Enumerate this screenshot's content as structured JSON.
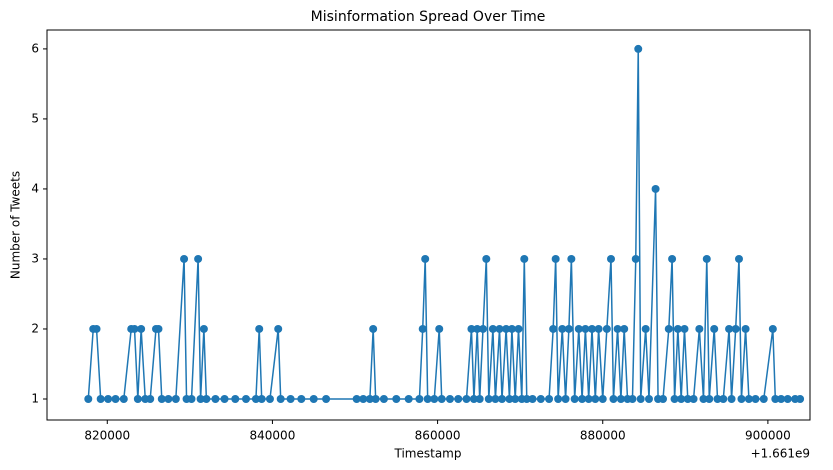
{
  "chart_data": {
    "type": "line",
    "title": "Misinformation Spread Over Time",
    "x_label": "Timestamp",
    "y_label": "Number of Tweets",
    "x_offset_label": "+1.661e9",
    "x": [
      817700,
      818300,
      818700,
      819200,
      820100,
      821000,
      822000,
      822900,
      823300,
      823700,
      824100,
      824600,
      825200,
      825900,
      826200,
      826600,
      827400,
      828300,
      829300,
      829600,
      830200,
      831000,
      831300,
      831700,
      832000,
      833100,
      834200,
      835500,
      836800,
      838000,
      838400,
      838700,
      839700,
      840700,
      841000,
      842200,
      843500,
      845000,
      846500,
      850200,
      851000,
      851800,
      852200,
      852500,
      853500,
      855000,
      856500,
      857800,
      858200,
      858500,
      858800,
      859600,
      860200,
      860500,
      861500,
      862500,
      863500,
      864100,
      864400,
      864800,
      865100,
      865500,
      865900,
      866200,
      866700,
      867000,
      867500,
      867800,
      868300,
      868700,
      869000,
      869400,
      869800,
      870200,
      870500,
      870800,
      871500,
      872500,
      873500,
      874000,
      874300,
      874600,
      875100,
      875500,
      875900,
      876200,
      876600,
      877100,
      877500,
      877900,
      878300,
      878700,
      879100,
      879500,
      880000,
      880500,
      881000,
      881300,
      881800,
      882200,
      882600,
      883000,
      883600,
      884000,
      884300,
      884600,
      885200,
      885600,
      886400,
      886700,
      887300,
      888000,
      888400,
      888700,
      889100,
      889500,
      889900,
      890300,
      891000,
      891700,
      892200,
      892600,
      892900,
      893500,
      893900,
      894600,
      895300,
      895600,
      896100,
      896500,
      896800,
      897300,
      897700,
      898500,
      899500,
      900600,
      900900,
      901600,
      902400,
      903300,
      903900
    ],
    "series": [
      {
        "color": "#1f77b4",
        "values": [
          1,
          2,
          2,
          1,
          1,
          1,
          1,
          2,
          2,
          1,
          2,
          1,
          1,
          2,
          2,
          1,
          1,
          1,
          3,
          1,
          1,
          3,
          1,
          2,
          1,
          1,
          1,
          1,
          1,
          1,
          2,
          1,
          1,
          2,
          1,
          1,
          1,
          1,
          1,
          1,
          1,
          1,
          2,
          1,
          1,
          1,
          1,
          1,
          2,
          3,
          1,
          1,
          2,
          1,
          1,
          1,
          1,
          2,
          1,
          2,
          1,
          2,
          3,
          1,
          2,
          1,
          2,
          1,
          2,
          1,
          2,
          1,
          2,
          1,
          3,
          1,
          1,
          1,
          1,
          2,
          3,
          1,
          2,
          1,
          2,
          3,
          1,
          2,
          1,
          2,
          1,
          2,
          1,
          2,
          1,
          2,
          3,
          1,
          2,
          1,
          2,
          1,
          1,
          3,
          6,
          1,
          2,
          1,
          4,
          1,
          1,
          2,
          3,
          1,
          2,
          1,
          2,
          1,
          1,
          2,
          1,
          3,
          1,
          2,
          1,
          1,
          2,
          1,
          2,
          3,
          1,
          2,
          1,
          1,
          1,
          2,
          1,
          1,
          1,
          1,
          1
        ]
      }
    ],
    "xlim": [
      812700,
      905100
    ],
    "xticks": [
      820000,
      840000,
      860000,
      880000,
      900000
    ],
    "ylim": [
      0.7,
      6.27
    ],
    "yticks": [
      1,
      2,
      3,
      4,
      5,
      6
    ]
  }
}
